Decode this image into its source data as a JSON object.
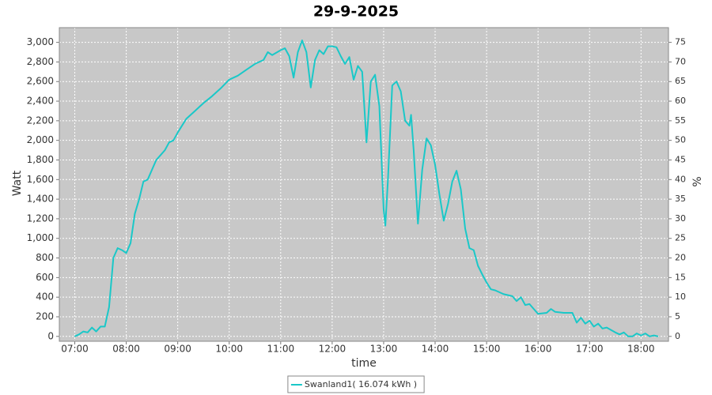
{
  "chart_data": {
    "type": "line",
    "title": "29-9-2025",
    "x_label": "time",
    "y_label": "Watt",
    "y2_label": "%",
    "x": [
      "07:00",
      "07:05",
      "07:10",
      "07:15",
      "07:20",
      "07:25",
      "07:30",
      "07:35",
      "07:40",
      "07:45",
      "07:50",
      "07:55",
      "08:00",
      "08:05",
      "08:10",
      "08:15",
      "08:20",
      "08:25",
      "08:30",
      "08:35",
      "08:40",
      "08:45",
      "08:50",
      "08:55",
      "09:00",
      "09:10",
      "09:20",
      "09:30",
      "09:40",
      "09:50",
      "10:00",
      "10:10",
      "10:20",
      "10:30",
      "10:40",
      "10:45",
      "10:50",
      "11:00",
      "11:05",
      "11:10",
      "11:15",
      "11:20",
      "11:25",
      "11:30",
      "11:35",
      "11:40",
      "11:45",
      "11:50",
      "11:55",
      "12:00",
      "12:05",
      "12:10",
      "12:15",
      "12:20",
      "12:25",
      "12:30",
      "12:35",
      "12:40",
      "12:45",
      "12:50",
      "12:55",
      "13:00",
      "13:02",
      "13:05",
      "13:10",
      "13:15",
      "13:20",
      "13:25",
      "13:30",
      "13:32",
      "13:35",
      "13:40",
      "13:45",
      "13:50",
      "13:55",
      "14:00",
      "14:05",
      "14:10",
      "14:15",
      "14:20",
      "14:25",
      "14:30",
      "14:35",
      "14:40",
      "14:45",
      "14:50",
      "14:55",
      "15:00",
      "15:05",
      "15:10",
      "15:20",
      "15:30",
      "15:35",
      "15:40",
      "15:45",
      "15:50",
      "15:55",
      "16:00",
      "16:10",
      "16:15",
      "16:20",
      "16:30",
      "16:40",
      "16:45",
      "16:50",
      "16:55",
      "17:00",
      "17:05",
      "17:10",
      "17:15",
      "17:20",
      "17:30",
      "17:35",
      "17:40",
      "17:45",
      "17:50",
      "17:55",
      "18:00",
      "18:05",
      "18:10",
      "18:15",
      "18:20"
    ],
    "series": [
      {
        "name": "Swanland1( 16.074 kWh )",
        "color": "#1ac8c8",
        "values": [
          0,
          20,
          50,
          40,
          90,
          50,
          100,
          100,
          300,
          800,
          900,
          880,
          850,
          950,
          1250,
          1400,
          1580,
          1600,
          1700,
          1800,
          1850,
          1900,
          1980,
          2000,
          2080,
          2220,
          2300,
          2380,
          2450,
          2530,
          2620,
          2660,
          2720,
          2780,
          2820,
          2900,
          2870,
          2920,
          2940,
          2860,
          2640,
          2900,
          3020,
          2900,
          2540,
          2820,
          2920,
          2880,
          2960,
          2960,
          2950,
          2860,
          2780,
          2850,
          2620,
          2760,
          2700,
          1980,
          2600,
          2670,
          2350,
          1300,
          1130,
          1600,
          2560,
          2600,
          2500,
          2200,
          2150,
          2260,
          1900,
          1150,
          1700,
          2020,
          1950,
          1750,
          1450,
          1180,
          1350,
          1580,
          1690,
          1500,
          1100,
          900,
          880,
          720,
          630,
          550,
          480,
          470,
          430,
          410,
          360,
          400,
          320,
          330,
          280,
          230,
          240,
          280,
          250,
          240,
          240,
          140,
          190,
          130,
          160,
          100,
          130,
          80,
          90,
          40,
          20,
          40,
          0,
          0,
          30,
          10,
          30,
          0,
          10,
          0
        ]
      }
    ],
    "xlim": [
      "06:42",
      "18:32"
    ],
    "xticks": [
      "07:00",
      "08:00",
      "09:00",
      "10:00",
      "11:00",
      "12:00",
      "13:00",
      "14:00",
      "15:00",
      "16:00",
      "17:00",
      "18:00"
    ],
    "ylim": [
      -50,
      3150
    ],
    "yticks": [
      0,
      200,
      400,
      600,
      800,
      {
        "value": 1000,
        "label": "1,000"
      },
      {
        "value": 1200,
        "label": "1,200"
      },
      {
        "value": 1400,
        "label": "1,400"
      },
      {
        "value": 1600,
        "label": "1,600"
      },
      {
        "value": 1800,
        "label": "1,800"
      },
      {
        "value": 2000,
        "label": "2,000"
      },
      {
        "value": 2200,
        "label": "2,200"
      },
      {
        "value": 2400,
        "label": "2,400"
      },
      {
        "value": 2600,
        "label": "2,600"
      },
      {
        "value": 2800,
        "label": "2,800"
      },
      {
        "value": 3000,
        "label": "3,000"
      }
    ],
    "y2lim": [
      -1.25,
      78.75
    ],
    "y2ticks": [
      0,
      5,
      10,
      15,
      20,
      25,
      30,
      35,
      40,
      45,
      50,
      55,
      60,
      65,
      70,
      75
    ],
    "grid": true
  }
}
